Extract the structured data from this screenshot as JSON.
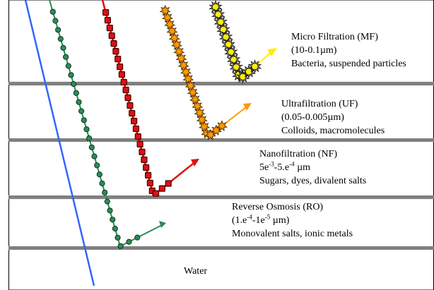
{
  "colors": {
    "water": "#3366ff",
    "ro": "#2e8b57",
    "nf": "#dd1111",
    "uf": "#ff9900",
    "mf": "#ffee00",
    "mf_arrow": "#ffee00",
    "membrane": "#000000"
  },
  "layers": {
    "mf": {
      "title": "Micro Filtration (MF)",
      "size": "(10-0.1µm)",
      "retains": "Bacteria, suspended particles"
    },
    "uf": {
      "title": "Ultrafiltration (UF)",
      "size": "(0.05-0.005µm)",
      "retains": "Colloids, macromolecules"
    },
    "nf": {
      "title": "Nanofiltration (NF)",
      "size_base": "5e",
      "size_exp1": "-3",
      "size_mid": "-5.e",
      "size_exp2": "-4",
      "size_unit": " µm",
      "retains": "Sugars, dyes, divalent salts"
    },
    "ro": {
      "title": "Reverse Osmosis (RO)",
      "size_base": "(1.e",
      "size_exp1": "-4",
      "size_mid": "-1e",
      "size_exp2": "-5",
      "size_unit": " µm)",
      "retains": "Monovalent salts, ionic metals"
    },
    "water": {
      "title": "Water"
    }
  }
}
